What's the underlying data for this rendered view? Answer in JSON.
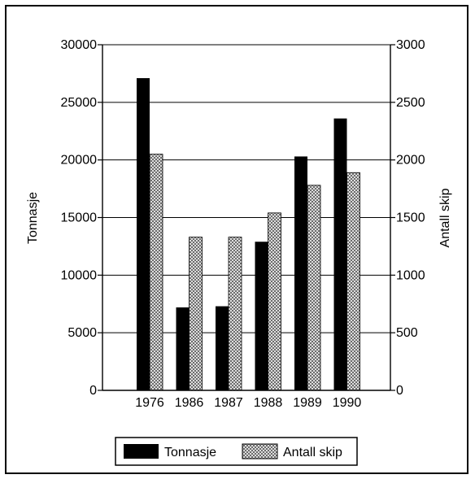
{
  "chart_data": {
    "type": "bar",
    "categories": [
      "1976",
      "1986",
      "1987",
      "1988",
      "1989",
      "1990"
    ],
    "series": [
      {
        "name": "Tonnasje",
        "axis": "left",
        "values": [
          27100,
          7200,
          7300,
          12900,
          20300,
          23600
        ]
      },
      {
        "name": "Antall skip",
        "axis": "right",
        "values": [
          2050,
          1330,
          1330,
          1540,
          1780,
          1890
        ]
      }
    ],
    "ylabel_left": "Tonnasje",
    "ylabel_right": "Antall skip",
    "ylim_left": [
      0,
      30000
    ],
    "ylim_right": [
      0,
      3000
    ],
    "yticks_left": [
      "0",
      "5000",
      "10000",
      "15000",
      "20000",
      "25000",
      "30000"
    ],
    "yticks_right": [
      "0",
      "500",
      "1000",
      "1500",
      "2000",
      "2500",
      "3000"
    ],
    "grid": true,
    "legend_position": "bottom",
    "colors": {
      "Tonnasje": "#000000",
      "Antall skip": "#b0b0b0"
    }
  }
}
